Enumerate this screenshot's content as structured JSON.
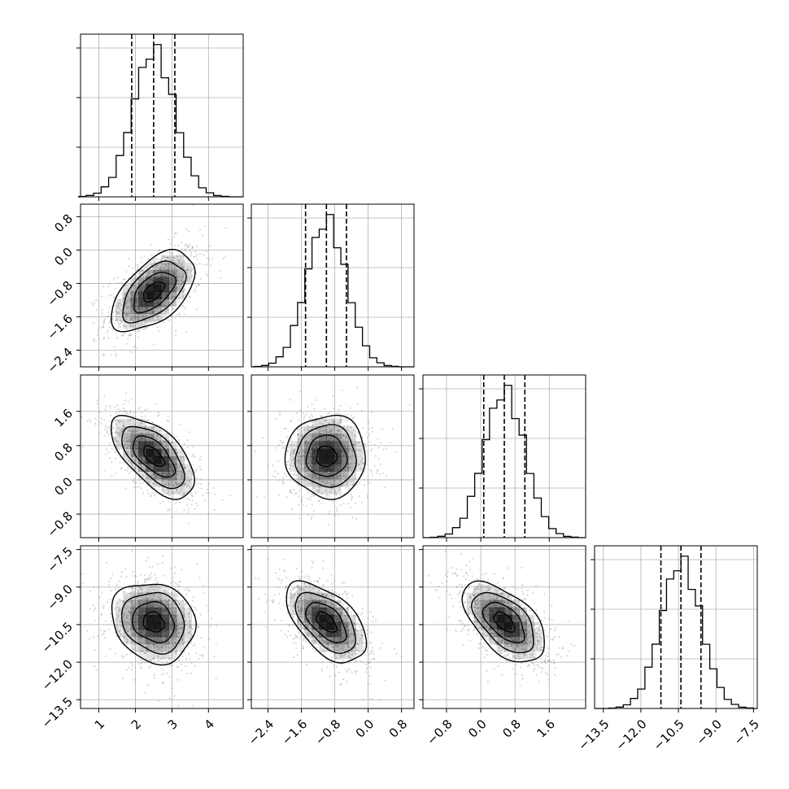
{
  "chart_data": {
    "type": "corner",
    "parameters": [
      {
        "index": 0,
        "ticks": [
          1,
          2,
          3,
          4
        ],
        "tick_labels": [
          "1",
          "2",
          "3",
          "4"
        ],
        "range": [
          0.5,
          4.95
        ],
        "quantiles": [
          1.9,
          2.5,
          3.08
        ],
        "peak": 2.5,
        "sigma": 0.57,
        "hist_ticks": 3
      },
      {
        "index": 1,
        "ticks": [
          -2.4,
          -1.6,
          -0.8,
          0.0,
          0.8
        ],
        "tick_labels": [
          "−2.4",
          "−1.6",
          "−0.8",
          "0.0",
          "0.8"
        ],
        "range": [
          -2.8,
          1.1
        ],
        "quantiles": [
          -1.5,
          -1.0,
          -0.52
        ],
        "peak": -1.0,
        "sigma": 0.48,
        "hist_ticks": 3
      },
      {
        "index": 2,
        "ticks": [
          -0.8,
          0.0,
          0.8,
          1.6
        ],
        "tick_labels": [
          "−0.8",
          "0.0",
          "0.8",
          "1.6"
        ],
        "range": [
          -1.35,
          2.45
        ],
        "quantiles": [
          0.07,
          0.55,
          1.03
        ],
        "peak": 0.55,
        "sigma": 0.48,
        "hist_ticks": 3
      },
      {
        "index": 3,
        "ticks": [
          -13.5,
          -12.0,
          -10.5,
          -9.0,
          -7.5
        ],
        "tick_labels": [
          "−13.5",
          "−12.0",
          "−10.5",
          "−9.0",
          "−7.5"
        ],
        "range": [
          -13.85,
          -7.35
        ],
        "quantiles": [
          -11.2,
          -10.4,
          -9.6
        ],
        "peak": -10.4,
        "sigma": 0.8,
        "hist_ticks": 3
      }
    ],
    "pairs": [
      {
        "row": 1,
        "col": 0,
        "corr": 0.55
      },
      {
        "row": 2,
        "col": 0,
        "corr": -0.62
      },
      {
        "row": 2,
        "col": 1,
        "corr": 0.0
      },
      {
        "row": 3,
        "col": 0,
        "corr": -0.15
      },
      {
        "row": 3,
        "col": 1,
        "corr": -0.55
      },
      {
        "row": 3,
        "col": 2,
        "corr": -0.55
      }
    ],
    "contour_levels": [
      "0.5 sigma",
      "1 sigma",
      "1.5 sigma",
      "2 sigma"
    ],
    "grid": true,
    "histogram_style": "step",
    "quantile_style": "dashed",
    "colors": {
      "line": "#000000",
      "grid": "#b0b0b0",
      "scatter": "#8c8c8c",
      "density": "#000000"
    }
  }
}
